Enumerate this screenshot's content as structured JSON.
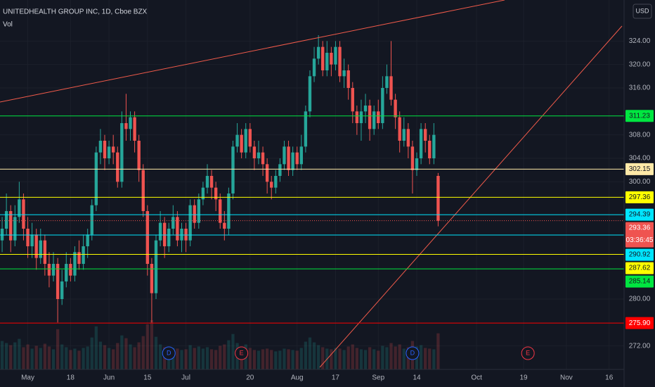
{
  "chart_data": {
    "type": "candlestick",
    "title": "UNITEDHEALTH GROUP INC, 1D, Cboe BZX",
    "indicator": "Vol",
    "currency": "USD",
    "countdown": "03:36:45",
    "up_color": "#26a69a",
    "down_color": "#ef5350",
    "grid": true,
    "ylim": [
      268,
      331
    ],
    "yticks": [
      {
        "value": 324,
        "label": "324.00"
      },
      {
        "value": 320,
        "label": "320.00"
      },
      {
        "value": 316,
        "label": "316.00"
      },
      {
        "value": 308,
        "label": "308.00"
      },
      {
        "value": 304,
        "label": "304.00"
      },
      {
        "value": 300,
        "label": "300.00"
      },
      {
        "value": 280,
        "label": "280.00"
      },
      {
        "value": 272,
        "label": "272.00"
      }
    ],
    "categories": [
      null,
      null,
      null,
      null,
      null,
      null,
      "May",
      null,
      null,
      null,
      null,
      null,
      null,
      null,
      null,
      null,
      "18",
      null,
      null,
      null,
      null,
      null,
      null,
      null,
      null,
      "Jun",
      null,
      null,
      null,
      null,
      null,
      null,
      null,
      null,
      "15",
      null,
      null,
      null,
      null,
      null,
      null,
      null,
      null,
      "Jul",
      null,
      null,
      null,
      null,
      null,
      null,
      null,
      null,
      null,
      null,
      null,
      null,
      null,
      null,
      "20",
      null,
      null,
      null,
      null,
      null,
      null,
      null,
      null,
      null,
      null,
      "Aug",
      null,
      null,
      null,
      null,
      null,
      null,
      null,
      null,
      "17",
      null,
      null,
      null,
      null,
      null,
      null,
      null,
      null,
      null,
      "Sep",
      null,
      null,
      null,
      null,
      null,
      null,
      null,
      null,
      "14",
      null,
      null,
      null,
      null,
      null,
      null,
      null,
      null,
      null,
      null,
      null,
      null,
      null,
      "Oct",
      null,
      null,
      null,
      null,
      null,
      null,
      null,
      null,
      null,
      null,
      "19",
      null,
      null,
      null,
      null,
      null,
      null,
      null,
      null,
      null,
      "Nov",
      null,
      null,
      null,
      null,
      null,
      null,
      null,
      null,
      null,
      "16",
      null,
      null,
      null
    ],
    "open": [
      290,
      292,
      295,
      290,
      294,
      297,
      292,
      289,
      291,
      287,
      290,
      286,
      284,
      286,
      280,
      283,
      286,
      284,
      288,
      286,
      289,
      291,
      296,
      305,
      307,
      304,
      306,
      305,
      300,
      310,
      309,
      311,
      307,
      302,
      295,
      286,
      281,
      290,
      293,
      289,
      292,
      294,
      290,
      292,
      290,
      296,
      293,
      297,
      299,
      301,
      299,
      297,
      293,
      292,
      298,
      306,
      308,
      305,
      309,
      306,
      304,
      305,
      303,
      300,
      299,
      301,
      303,
      306,
      302,
      305,
      303,
      306,
      312,
      318,
      321,
      323,
      319,
      322,
      320,
      323,
      318,
      319,
      316,
      312,
      310,
      312,
      313,
      309,
      312,
      310,
      316,
      318,
      314,
      311,
      307,
      309,
      306,
      302,
      304,
      309,
      307,
      304,
      301,
      null,
      null,
      null,
      null,
      null,
      null,
      null,
      null,
      null,
      null,
      null,
      null,
      null,
      null,
      null,
      null,
      null,
      null,
      null,
      null,
      null,
      null,
      null,
      null,
      null,
      null,
      null,
      null,
      null,
      null,
      null,
      null,
      null,
      null,
      null,
      null,
      null,
      null,
      null,
      null,
      null,
      null,
      null
    ],
    "high": [
      294,
      298,
      296,
      296,
      300,
      298,
      294,
      293,
      292,
      292,
      291,
      288,
      288,
      287,
      285,
      288,
      287,
      289,
      290,
      291,
      292,
      297,
      306,
      309,
      308,
      307,
      308,
      306,
      312,
      315,
      312,
      312,
      308,
      303,
      296,
      287,
      291,
      295,
      294,
      293,
      296,
      295,
      293,
      293,
      297,
      297,
      298,
      300,
      303,
      302,
      300,
      298,
      295,
      299,
      307,
      310,
      309,
      310,
      310,
      307,
      307,
      306,
      304,
      301,
      302,
      304,
      307,
      307,
      306,
      306,
      308,
      313,
      319,
      323,
      325,
      324,
      324,
      323,
      324,
      324,
      321,
      320,
      317,
      313,
      314,
      315,
      314,
      313,
      314,
      318,
      320,
      324,
      315,
      312,
      311,
      310,
      307,
      305,
      310,
      310,
      308,
      310,
      301.5,
      null,
      null,
      null,
      null,
      null,
      null,
      null,
      null,
      null,
      null,
      null,
      null,
      null,
      null,
      null,
      null,
      null,
      null,
      null,
      null,
      null,
      null,
      null,
      null,
      null,
      null,
      null,
      null,
      null,
      null,
      null,
      null,
      null,
      null,
      null,
      null,
      null,
      null,
      null,
      null,
      null,
      null,
      null
    ],
    "low": [
      288,
      291,
      288,
      289,
      293,
      290,
      287,
      287,
      285,
      286,
      284,
      282,
      283,
      276,
      279,
      282,
      283,
      283,
      285,
      285,
      287,
      290,
      295,
      303,
      302,
      303,
      303,
      299,
      299,
      307,
      307,
      305,
      300,
      294,
      284,
      276,
      280,
      289,
      287,
      288,
      291,
      289,
      288,
      288,
      289,
      292,
      292,
      296,
      298,
      297,
      295,
      292,
      290,
      291,
      297,
      305,
      304,
      304,
      305,
      302,
      303,
      301,
      298,
      297,
      298,
      300,
      302,
      301,
      301,
      302,
      302,
      305,
      311,
      317,
      320,
      318,
      318,
      318,
      319,
      317,
      316,
      314,
      310,
      308,
      307,
      310,
      307,
      308,
      309,
      309,
      315,
      313,
      309,
      305,
      306,
      304,
      298,
      301,
      303,
      305,
      303,
      303,
      292.4,
      null,
      null,
      null,
      null,
      null,
      null,
      null,
      null,
      null,
      null,
      null,
      null,
      null,
      null,
      null,
      null,
      null,
      null,
      null,
      null,
      null,
      null,
      null,
      null,
      null,
      null,
      null,
      null,
      null,
      null,
      null,
      null,
      null,
      null,
      null,
      null,
      null,
      null,
      null,
      null,
      null,
      null,
      null
    ],
    "close": [
      292,
      295,
      290,
      294,
      297,
      292,
      289,
      291,
      287,
      290,
      286,
      284,
      286,
      280,
      283,
      286,
      284,
      288,
      286,
      289,
      291,
      296,
      305,
      307,
      304,
      306,
      305,
      300,
      310,
      309,
      311,
      307,
      302,
      295,
      286,
      281,
      290,
      293,
      289,
      292,
      294,
      290,
      292,
      290,
      296,
      293,
      297,
      299,
      301,
      299,
      297,
      293,
      292,
      298,
      306,
      308,
      305,
      309,
      306,
      304,
      305,
      303,
      300,
      299,
      301,
      303,
      306,
      302,
      305,
      303,
      306,
      312,
      318,
      321,
      323,
      319,
      322,
      320,
      323,
      318,
      319,
      316,
      312,
      310,
      312,
      313,
      309,
      312,
      310,
      316,
      318,
      314,
      311,
      307,
      309,
      306,
      302,
      304,
      309,
      307,
      304,
      308,
      293.36,
      null,
      null,
      null,
      null,
      null,
      null,
      null,
      null,
      null,
      null,
      null,
      null,
      null,
      null,
      null,
      null,
      null,
      null,
      null,
      null,
      null,
      null,
      null,
      null,
      null,
      null,
      null,
      null,
      null,
      null,
      null,
      null,
      null,
      null,
      null,
      null,
      null,
      null,
      null,
      null,
      null,
      null,
      null
    ],
    "volume": [
      4.1,
      3.8,
      3.5,
      3.9,
      4.4,
      3.2,
      3.6,
      3.0,
      3.4,
      3.1,
      3.7,
      3.3,
      2.9,
      5.8,
      3.6,
      3.2,
      2.8,
      3.0,
      2.7,
      3.1,
      3.3,
      4.6,
      6.2,
      4.0,
      3.5,
      3.1,
      2.9,
      3.8,
      4.9,
      4.5,
      3.6,
      3.2,
      3.9,
      4.8,
      6.5,
      7.1,
      4.7,
      3.6,
      3.2,
      2.9,
      3.1,
      3.0,
      2.8,
      2.9,
      3.5,
      3.1,
      3.3,
      3.0,
      3.2,
      2.9,
      2.8,
      3.4,
      3.6,
      4.2,
      5.1,
      3.8,
      3.3,
      3.6,
      3.1,
      2.8,
      2.7,
      2.9,
      3.0,
      2.8,
      2.6,
      2.7,
      3.0,
      2.9,
      2.8,
      2.7,
      3.1,
      4.0,
      4.6,
      3.9,
      3.5,
      3.2,
      3.0,
      2.9,
      3.1,
      3.0,
      2.8,
      3.3,
      3.6,
      3.1,
      2.9,
      2.8,
      3.2,
      2.9,
      2.7,
      3.4,
      3.2,
      3.8,
      3.3,
      3.6,
      3.0,
      3.2,
      4.1,
      3.3,
      3.5,
      3.1,
      3.0,
      2.9,
      5.2,
      null,
      null,
      null,
      null,
      null,
      null,
      null,
      null,
      null,
      null,
      null,
      null,
      null,
      null,
      null,
      null,
      null,
      null,
      null,
      null,
      null,
      null,
      null,
      null,
      null,
      null,
      null,
      null,
      null,
      null,
      null,
      null,
      null,
      null,
      null,
      null,
      null,
      null,
      null,
      null,
      null,
      null,
      null
    ],
    "levels": [
      {
        "value": 311.23,
        "color": "#00e640"
      },
      {
        "value": 302.15,
        "color": "#ffe9a8"
      },
      {
        "value": 297.36,
        "color": "#ffff00"
      },
      {
        "value": 294.39,
        "color": "#00e5ff"
      },
      {
        "value": 290.92,
        "color": "#00e5ff"
      },
      {
        "value": 287.62,
        "color": "#ffff00"
      },
      {
        "value": 285.14,
        "color": "#00e640"
      },
      {
        "value": 275.9,
        "label": "275.90",
        "color": "#ff0000"
      }
    ],
    "events": [
      "D",
      "E",
      "D",
      "E"
    ]
  }
}
